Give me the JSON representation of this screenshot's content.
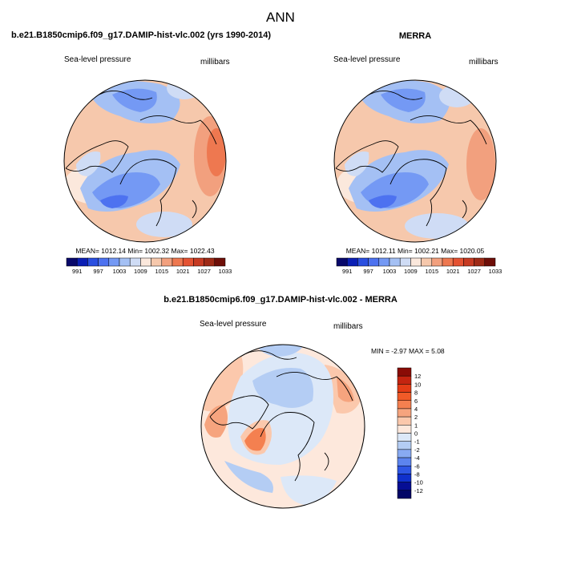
{
  "figure": {
    "title": "ANN",
    "colors": {
      "coast": "#000000",
      "background": "#ffffff"
    }
  },
  "chart_data": [
    {
      "type": "heatmap",
      "projection": "north-polar-stereographic",
      "title": "b.e21.B1850cmip6.f09_g17.DAMIP-hist-vlc.002 (yrs 1990-2014)",
      "left_label": "Sea-level pressure",
      "right_label": "millibars",
      "stats": "MEAN= 1012.14  Min= 1002.32  Max= 1022.43",
      "mean": 1012.14,
      "min": 1002.32,
      "max": 1022.43,
      "colorbar": {
        "orientation": "horizontal",
        "tick_labels": [
          "991",
          "997",
          "1003",
          "1009",
          "1015",
          "1021",
          "1027",
          "1033"
        ],
        "colors": [
          "#08086a",
          "#0b1fb4",
          "#2a4fe0",
          "#4d72f0",
          "#7499f4",
          "#a4c0f4",
          "#cfdcf5",
          "#fbe8dc",
          "#f6c8ac",
          "#f2a07e",
          "#ee7850",
          "#e45232",
          "#c63a22",
          "#9e2a16",
          "#6e0e08"
        ]
      }
    },
    {
      "type": "heatmap",
      "projection": "north-polar-stereographic",
      "title": "MERRA",
      "left_label": "Sea-level pressure",
      "right_label": "millibars",
      "stats": "MEAN= 1012.11  Min= 1002.21  Max= 1020.05",
      "mean": 1012.11,
      "min": 1002.21,
      "max": 1020.05,
      "colorbar": {
        "orientation": "horizontal",
        "tick_labels": [
          "991",
          "997",
          "1003",
          "1009",
          "1015",
          "1021",
          "1027",
          "1033"
        ],
        "colors": [
          "#08086a",
          "#0b1fb4",
          "#2a4fe0",
          "#4d72f0",
          "#7499f4",
          "#a4c0f4",
          "#cfdcf5",
          "#fbe8dc",
          "#f6c8ac",
          "#f2a07e",
          "#ee7850",
          "#e45232",
          "#c63a22",
          "#9e2a16",
          "#6e0e08"
        ]
      }
    },
    {
      "type": "heatmap",
      "projection": "north-polar-stereographic",
      "title": "b.e21.B1850cmip6.f09_g17.DAMIP-hist-vlc.002 - MERRA",
      "left_label": "Sea-level pressure",
      "right_label": "millibars",
      "stats": "MIN = -2.97 MAX =   5.08",
      "min": -2.97,
      "max": 5.08,
      "colorbar": {
        "orientation": "vertical",
        "tick_labels": [
          "12",
          "10",
          "8",
          "6",
          "4",
          "2",
          "1",
          "0",
          "-1",
          "-2",
          "-4",
          "-6",
          "-8",
          "-10",
          "-12"
        ],
        "colors": [
          "#8a0c06",
          "#c42410",
          "#e43c16",
          "#f05a28",
          "#f48050",
          "#f6a47e",
          "#fbc8ac",
          "#fde8dc",
          "#dce8f8",
          "#b4cdf4",
          "#88aaf2",
          "#5c84ee",
          "#2e56e4",
          "#1030cc",
          "#060e94",
          "#020666"
        ]
      }
    }
  ]
}
